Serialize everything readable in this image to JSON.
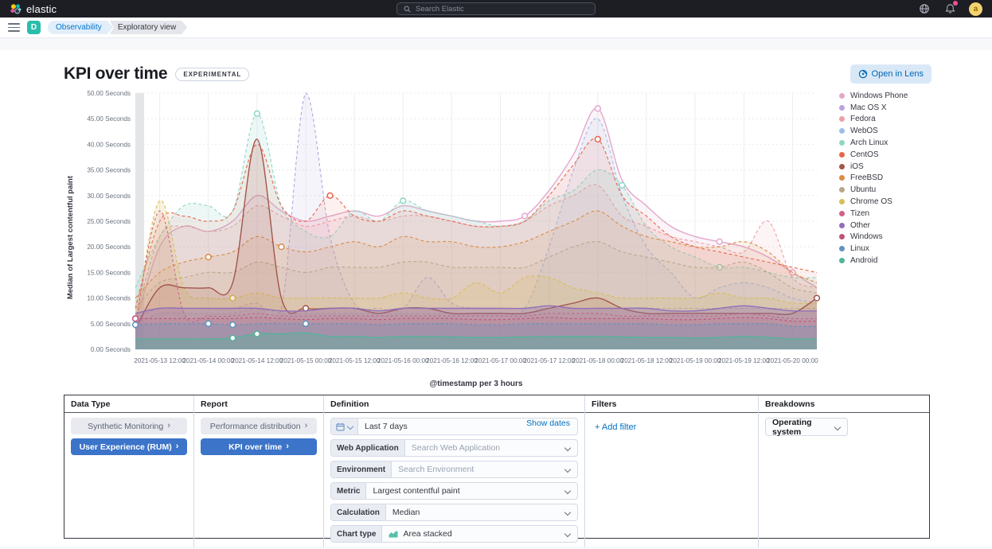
{
  "topbar": {
    "brand": "elastic",
    "search_placeholder": "Search Elastic",
    "avatar_initial": "a"
  },
  "breadcrumbs": {
    "app_initial": "D",
    "items": [
      {
        "label": "Observability"
      },
      {
        "label": "Exploratory view"
      }
    ]
  },
  "header": {
    "title": "KPI over time",
    "badge": "EXPERIMENTAL",
    "open_in_lens_label": "Open in Lens"
  },
  "chart_data": {
    "type": "area",
    "title": "KPI over time",
    "ylabel": "Median of Largest contentful paint",
    "xlabel": "@timestamp per 3 hours",
    "y_unit": "Seconds",
    "ylim": [
      0,
      50
    ],
    "ytick_step": 5,
    "grid": true,
    "legend_position": "right",
    "x_tick_labels": [
      "2021-05-13 12:00",
      "2021-05-14 00:00",
      "2021-05-14 12:00",
      "2021-05-15 00:00",
      "2021-05-15 12:00",
      "2021-05-16 00:00",
      "2021-05-16 12:00",
      "2021-05-17 00:00",
      "2021-05-17 12:00",
      "2021-05-18 00:00",
      "2021-05-18 12:00",
      "2021-05-19 00:00",
      "2021-05-19 12:00",
      "2021-05-20 00:00"
    ],
    "series": [
      {
        "name": "Windows Phone",
        "color": "#E2A8CB",
        "dash": "",
        "width": 1.4,
        "fill": 0.13,
        "z": 2,
        "markers": [
          16,
          19,
          24,
          27
        ],
        "values": [
          5,
          20,
          24,
          23,
          25,
          30,
          27,
          25,
          26,
          27,
          26,
          28,
          27,
          26,
          25,
          25,
          26,
          31,
          38,
          47,
          33,
          28,
          24,
          22,
          21,
          20,
          18,
          15,
          12
        ]
      },
      {
        "name": "Mac OS X",
        "color": "#B9A3DC",
        "dash": "4 3",
        "width": 1.1,
        "fill": 0.12,
        "z": 1,
        "markers": [],
        "values": [
          6,
          8,
          8,
          8,
          8,
          9,
          8,
          50,
          22,
          9,
          8,
          8,
          14,
          9,
          8,
          8,
          8,
          8,
          8,
          8,
          8,
          8,
          8,
          8,
          8,
          8,
          8,
          8,
          8
        ]
      },
      {
        "name": "Fedora",
        "color": "#EF9FA6",
        "dash": "4 3",
        "width": 1.1,
        "fill": 0.11,
        "z": 4,
        "markers": [],
        "values": [
          6,
          22,
          24,
          23,
          24,
          28,
          26,
          24,
          25,
          26,
          25,
          26,
          26,
          25,
          24,
          24,
          25,
          28,
          30,
          32,
          26,
          24,
          22,
          21,
          20,
          19,
          25,
          14,
          12
        ]
      },
      {
        "name": "WebOS",
        "color": "#9EBCE8",
        "dash": "4 3",
        "width": 1.1,
        "fill": 0.12,
        "z": 3,
        "markers": [],
        "values": [
          5,
          7,
          7,
          7,
          7,
          8,
          7,
          7,
          7,
          7,
          7,
          7,
          7,
          7,
          7,
          7,
          8,
          20,
          35,
          45,
          30,
          20,
          15,
          10,
          12,
          13,
          12,
          10,
          9
        ]
      },
      {
        "name": "Arch Linux",
        "color": "#8FD6C5",
        "dash": "4 3",
        "width": 1.1,
        "fill": 0.16,
        "z": 5,
        "markers": [
          5,
          11,
          20,
          24
        ],
        "values": [
          12,
          22,
          28,
          28,
          27,
          46,
          28,
          23,
          22,
          27,
          25,
          29,
          27,
          26,
          25,
          24,
          25,
          29,
          31,
          35,
          32,
          24,
          20,
          18,
          16,
          16,
          15,
          14,
          14
        ]
      },
      {
        "name": "CentOS",
        "color": "#E7664C",
        "dash": "4 3",
        "width": 1.1,
        "fill": 0.09,
        "z": 6,
        "markers": [
          8,
          19
        ],
        "values": [
          8,
          25,
          26,
          25,
          27,
          40,
          28,
          25,
          30,
          26,
          25,
          27,
          26,
          25,
          24,
          24,
          25,
          30,
          36,
          41,
          30,
          26,
          22,
          20,
          19,
          18,
          17,
          16,
          15
        ]
      },
      {
        "name": "iOS",
        "color": "#A2564C",
        "dash": "",
        "width": 1.4,
        "fill": 0.12,
        "z": 10,
        "markers": [
          7,
          28
        ],
        "values": [
          4,
          12,
          12,
          12,
          13,
          41,
          10,
          8,
          8,
          8,
          7,
          8,
          8,
          7,
          7,
          7,
          7,
          8,
          9,
          10,
          8,
          7,
          7,
          7,
          7,
          7,
          7,
          7,
          10
        ]
      },
      {
        "name": "FreeBSD",
        "color": "#DA8B45",
        "dash": "4 3",
        "width": 1.1,
        "fill": 0.1,
        "z": 7,
        "markers": [
          3,
          6
        ],
        "values": [
          10,
          15,
          17,
          18,
          19,
          22,
          20,
          19,
          20,
          21,
          20,
          22,
          21,
          21,
          20,
          20,
          21,
          23,
          25,
          27,
          24,
          22,
          21,
          20,
          20,
          21,
          19,
          15,
          13
        ]
      },
      {
        "name": "Ubuntu",
        "color": "#B9A888",
        "dash": "4 3",
        "width": 1.1,
        "fill": 0.1,
        "z": 8,
        "markers": [],
        "values": [
          8,
          13,
          14,
          15,
          15,
          17,
          16,
          15,
          16,
          16,
          16,
          17,
          17,
          16,
          16,
          16,
          16,
          18,
          20,
          21,
          19,
          18,
          17,
          16,
          16,
          17,
          15,
          12,
          11
        ]
      },
      {
        "name": "Chrome OS",
        "color": "#D6BF57",
        "dash": "4 3",
        "width": 1.1,
        "fill": 0.18,
        "z": 9,
        "markers": [
          4
        ],
        "values": [
          5,
          29,
          12,
          10,
          10,
          11,
          10,
          10,
          10,
          10,
          10,
          11,
          10,
          10,
          13,
          11,
          14,
          14,
          12,
          11,
          10,
          10,
          10,
          10,
          11,
          10,
          10,
          9,
          9
        ]
      },
      {
        "name": "Tizen",
        "color": "#D36086",
        "dash": "3 3",
        "width": 1.1,
        "fill": 0.09,
        "z": 11,
        "markers": [],
        "values": [
          5,
          27,
          7,
          6.5,
          6.5,
          7,
          6.5,
          6.5,
          6.5,
          6.5,
          6.5,
          6.5,
          6.5,
          6.5,
          6.5,
          6.5,
          6.5,
          7,
          7,
          7,
          6.5,
          6.5,
          6.5,
          6.5,
          6.5,
          7,
          6.5,
          6,
          6
        ]
      },
      {
        "name": "Other",
        "color": "#9170B8",
        "dash": "",
        "width": 1.4,
        "fill": 0.32,
        "z": 12,
        "markers": [],
        "values": [
          7,
          8,
          8,
          8,
          8,
          8,
          7.5,
          7.5,
          8,
          8,
          7.5,
          8,
          8,
          8,
          8,
          8,
          8,
          8.5,
          8,
          8,
          8,
          8,
          7.5,
          7.5,
          8,
          8.5,
          8,
          7.5,
          7.5
        ]
      },
      {
        "name": "Windows",
        "color": "#C0507A",
        "dash": "3 3",
        "width": 1.1,
        "fill": 0.08,
        "z": 13,
        "markers": [
          0
        ],
        "values": [
          6,
          6,
          6,
          6,
          6,
          6.2,
          6,
          5.8,
          6,
          6,
          5.8,
          6,
          6,
          6,
          5.8,
          5.8,
          6,
          6.2,
          6,
          6,
          6,
          6,
          5.8,
          5.8,
          6,
          6.2,
          6,
          5.5,
          5.5
        ]
      },
      {
        "name": "Linux",
        "color": "#6092C0",
        "dash": "3 3",
        "width": 1.2,
        "fill": 0.26,
        "z": 14,
        "markers": [
          0,
          3,
          4,
          7
        ],
        "values": [
          4.8,
          5,
          5,
          5,
          4.8,
          5,
          5,
          5,
          5,
          5,
          4.8,
          5,
          5,
          5,
          4.8,
          4.8,
          5,
          5,
          5,
          5,
          5,
          5,
          4.8,
          4.8,
          5,
          5,
          5,
          4.5,
          4.5
        ]
      },
      {
        "name": "Android",
        "color": "#54B399",
        "dash": "",
        "width": 1.4,
        "fill": 0.38,
        "z": 15,
        "markers": [
          4,
          5
        ],
        "values": [
          2,
          2,
          2,
          2,
          2.2,
          3,
          3,
          3.2,
          2.5,
          2.5,
          2.3,
          2.5,
          2.5,
          2.4,
          2.3,
          2.3,
          2.4,
          2.5,
          2.5,
          2.5,
          2.4,
          2.3,
          2.3,
          2.2,
          2.3,
          2.5,
          2.3,
          2,
          2
        ]
      }
    ]
  },
  "panel": {
    "data_type": {
      "header": "Data Type",
      "options": [
        {
          "label": "Synthetic Monitoring",
          "selected": false
        },
        {
          "label": "User Experience (RUM)",
          "selected": true
        }
      ]
    },
    "report": {
      "header": "Report",
      "options": [
        {
          "label": "Performance distribution",
          "selected": false
        },
        {
          "label": "KPI over time",
          "selected": true
        }
      ]
    },
    "definition": {
      "header": "Definition",
      "date_picker": {
        "value": "Last 7 days",
        "action": "Show dates"
      },
      "rows": [
        {
          "label": "Web Application",
          "value": "",
          "placeholder": "Search Web Application"
        },
        {
          "label": "Environment",
          "value": "",
          "placeholder": "Search Environment"
        },
        {
          "label": "Metric",
          "value": "Largest contentful paint"
        },
        {
          "label": "Calculation",
          "value": "Median"
        },
        {
          "label": "Chart type",
          "value": "Area stacked",
          "icon": "area-chart-icon"
        }
      ]
    },
    "filters": {
      "header": "Filters",
      "add_label": "+ Add filter"
    },
    "breakdowns": {
      "header": "Breakdowns",
      "selected": "Operating system"
    }
  },
  "colors": {
    "primary": "#3b74c9",
    "link": "#0071c2",
    "accent_teal": "#2bbdab"
  }
}
